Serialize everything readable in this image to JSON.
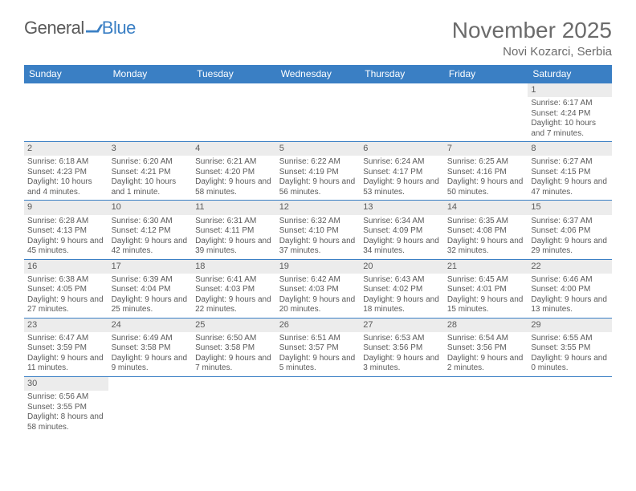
{
  "logo": {
    "text1": "General",
    "text2": "Blue"
  },
  "title": "November 2025",
  "location": "Novi Kozarci, Serbia",
  "colors": {
    "header_bg": "#3a7fc4",
    "header_text": "#ffffff",
    "daynum_bg": "#ececec",
    "row_border": "#3a7fc4",
    "text": "#5a5a5a",
    "logo_blue": "#3a7fc4"
  },
  "fonts": {
    "title_size": 28,
    "location_size": 15,
    "header_size": 12,
    "daynum_size": 11,
    "body_size": 10
  },
  "weekdays": [
    "Sunday",
    "Monday",
    "Tuesday",
    "Wednesday",
    "Thursday",
    "Friday",
    "Saturday"
  ],
  "weeks": [
    [
      null,
      null,
      null,
      null,
      null,
      null,
      {
        "n": "1",
        "sunrise": "6:17 AM",
        "sunset": "4:24 PM",
        "daylight": "10 hours and 7 minutes."
      }
    ],
    [
      {
        "n": "2",
        "sunrise": "6:18 AM",
        "sunset": "4:23 PM",
        "daylight": "10 hours and 4 minutes."
      },
      {
        "n": "3",
        "sunrise": "6:20 AM",
        "sunset": "4:21 PM",
        "daylight": "10 hours and 1 minute."
      },
      {
        "n": "4",
        "sunrise": "6:21 AM",
        "sunset": "4:20 PM",
        "daylight": "9 hours and 58 minutes."
      },
      {
        "n": "5",
        "sunrise": "6:22 AM",
        "sunset": "4:19 PM",
        "daylight": "9 hours and 56 minutes."
      },
      {
        "n": "6",
        "sunrise": "6:24 AM",
        "sunset": "4:17 PM",
        "daylight": "9 hours and 53 minutes."
      },
      {
        "n": "7",
        "sunrise": "6:25 AM",
        "sunset": "4:16 PM",
        "daylight": "9 hours and 50 minutes."
      },
      {
        "n": "8",
        "sunrise": "6:27 AM",
        "sunset": "4:15 PM",
        "daylight": "9 hours and 47 minutes."
      }
    ],
    [
      {
        "n": "9",
        "sunrise": "6:28 AM",
        "sunset": "4:13 PM",
        "daylight": "9 hours and 45 minutes."
      },
      {
        "n": "10",
        "sunrise": "6:30 AM",
        "sunset": "4:12 PM",
        "daylight": "9 hours and 42 minutes."
      },
      {
        "n": "11",
        "sunrise": "6:31 AM",
        "sunset": "4:11 PM",
        "daylight": "9 hours and 39 minutes."
      },
      {
        "n": "12",
        "sunrise": "6:32 AM",
        "sunset": "4:10 PM",
        "daylight": "9 hours and 37 minutes."
      },
      {
        "n": "13",
        "sunrise": "6:34 AM",
        "sunset": "4:09 PM",
        "daylight": "9 hours and 34 minutes."
      },
      {
        "n": "14",
        "sunrise": "6:35 AM",
        "sunset": "4:08 PM",
        "daylight": "9 hours and 32 minutes."
      },
      {
        "n": "15",
        "sunrise": "6:37 AM",
        "sunset": "4:06 PM",
        "daylight": "9 hours and 29 minutes."
      }
    ],
    [
      {
        "n": "16",
        "sunrise": "6:38 AM",
        "sunset": "4:05 PM",
        "daylight": "9 hours and 27 minutes."
      },
      {
        "n": "17",
        "sunrise": "6:39 AM",
        "sunset": "4:04 PM",
        "daylight": "9 hours and 25 minutes."
      },
      {
        "n": "18",
        "sunrise": "6:41 AM",
        "sunset": "4:03 PM",
        "daylight": "9 hours and 22 minutes."
      },
      {
        "n": "19",
        "sunrise": "6:42 AM",
        "sunset": "4:03 PM",
        "daylight": "9 hours and 20 minutes."
      },
      {
        "n": "20",
        "sunrise": "6:43 AM",
        "sunset": "4:02 PM",
        "daylight": "9 hours and 18 minutes."
      },
      {
        "n": "21",
        "sunrise": "6:45 AM",
        "sunset": "4:01 PM",
        "daylight": "9 hours and 15 minutes."
      },
      {
        "n": "22",
        "sunrise": "6:46 AM",
        "sunset": "4:00 PM",
        "daylight": "9 hours and 13 minutes."
      }
    ],
    [
      {
        "n": "23",
        "sunrise": "6:47 AM",
        "sunset": "3:59 PM",
        "daylight": "9 hours and 11 minutes."
      },
      {
        "n": "24",
        "sunrise": "6:49 AM",
        "sunset": "3:58 PM",
        "daylight": "9 hours and 9 minutes."
      },
      {
        "n": "25",
        "sunrise": "6:50 AM",
        "sunset": "3:58 PM",
        "daylight": "9 hours and 7 minutes."
      },
      {
        "n": "26",
        "sunrise": "6:51 AM",
        "sunset": "3:57 PM",
        "daylight": "9 hours and 5 minutes."
      },
      {
        "n": "27",
        "sunrise": "6:53 AM",
        "sunset": "3:56 PM",
        "daylight": "9 hours and 3 minutes."
      },
      {
        "n": "28",
        "sunrise": "6:54 AM",
        "sunset": "3:56 PM",
        "daylight": "9 hours and 2 minutes."
      },
      {
        "n": "29",
        "sunrise": "6:55 AM",
        "sunset": "3:55 PM",
        "daylight": "9 hours and 0 minutes."
      }
    ],
    [
      {
        "n": "30",
        "sunrise": "6:56 AM",
        "sunset": "3:55 PM",
        "daylight": "8 hours and 58 minutes."
      },
      null,
      null,
      null,
      null,
      null,
      null
    ]
  ],
  "labels": {
    "sunrise": "Sunrise: ",
    "sunset": "Sunset: ",
    "daylight": "Daylight: "
  }
}
